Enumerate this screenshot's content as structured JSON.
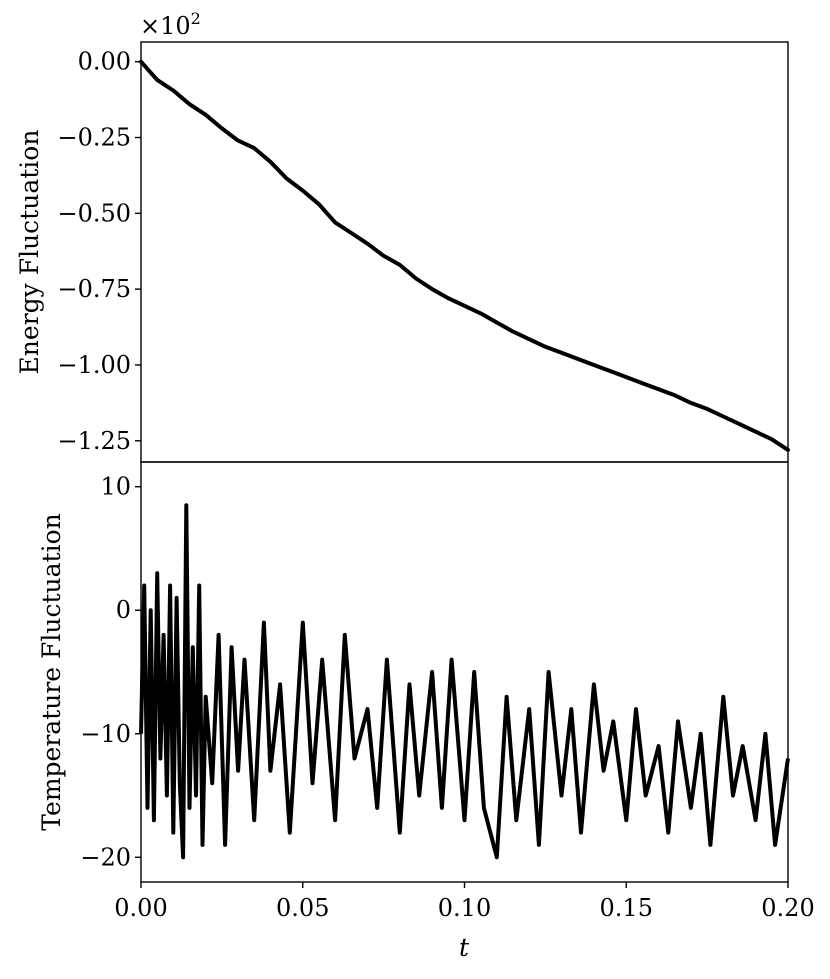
{
  "chart_data": [
    {
      "type": "line",
      "panel": "top",
      "ylabel": "Energy Fluctuation",
      "offset_text": {
        "prefix": "×10",
        "exponent": "2"
      },
      "xlim": [
        0.0,
        0.2
      ],
      "ylim": [
        -1.32,
        0.065
      ],
      "yticks": [
        0.0,
        -0.25,
        -0.5,
        -0.75,
        -1.0,
        -1.25
      ],
      "ytick_labels": [
        "0.00",
        "−0.25",
        "−0.50",
        "−0.75",
        "−1.00",
        "−1.25"
      ],
      "grid": false,
      "color": "#000000",
      "series": [
        {
          "x": [
            0.0,
            0.005,
            0.01,
            0.015,
            0.02,
            0.025,
            0.03,
            0.035,
            0.04,
            0.045,
            0.05,
            0.055,
            0.06,
            0.065,
            0.07,
            0.075,
            0.08,
            0.085,
            0.09,
            0.095,
            0.1,
            0.105,
            0.11,
            0.115,
            0.12,
            0.125,
            0.13,
            0.135,
            0.14,
            0.145,
            0.15,
            0.155,
            0.16,
            0.165,
            0.17,
            0.175,
            0.18,
            0.185,
            0.19,
            0.195,
            0.2
          ],
          "y": [
            0.0,
            -0.06,
            -0.095,
            -0.14,
            -0.175,
            -0.22,
            -0.26,
            -0.285,
            -0.33,
            -0.385,
            -0.425,
            -0.47,
            -0.53,
            -0.565,
            -0.6,
            -0.64,
            -0.67,
            -0.715,
            -0.75,
            -0.78,
            -0.805,
            -0.83,
            -0.86,
            -0.89,
            -0.915,
            -0.94,
            -0.96,
            -0.98,
            -1.0,
            -1.02,
            -1.04,
            -1.06,
            -1.08,
            -1.1,
            -1.125,
            -1.145,
            -1.17,
            -1.195,
            -1.22,
            -1.245,
            -1.28
          ]
        }
      ]
    },
    {
      "type": "line",
      "panel": "bottom",
      "ylabel": "Temperature Fluctuation",
      "xlabel": "t",
      "xlim": [
        0.0,
        0.2
      ],
      "ylim": [
        -22,
        12
      ],
      "yticks": [
        10,
        0,
        -10,
        -20
      ],
      "ytick_labels": [
        "10",
        "0",
        "−10",
        "−20"
      ],
      "xticks": [
        0.0,
        0.05,
        0.1,
        0.15,
        0.2
      ],
      "xtick_labels": [
        "0.00",
        "0.05",
        "0.10",
        "0.15",
        "0.20"
      ],
      "grid": false,
      "color": "#000000",
      "series": [
        {
          "x": [
            0.0,
            0.001,
            0.002,
            0.003,
            0.004,
            0.005,
            0.006,
            0.007,
            0.008,
            0.009,
            0.01,
            0.011,
            0.012,
            0.013,
            0.014,
            0.015,
            0.016,
            0.017,
            0.018,
            0.019,
            0.02,
            0.022,
            0.024,
            0.026,
            0.028,
            0.03,
            0.032,
            0.035,
            0.038,
            0.04,
            0.043,
            0.046,
            0.05,
            0.053,
            0.056,
            0.06,
            0.063,
            0.066,
            0.07,
            0.073,
            0.076,
            0.08,
            0.083,
            0.086,
            0.09,
            0.093,
            0.096,
            0.1,
            0.103,
            0.106,
            0.11,
            0.113,
            0.116,
            0.12,
            0.123,
            0.126,
            0.13,
            0.133,
            0.136,
            0.14,
            0.143,
            0.146,
            0.15,
            0.153,
            0.156,
            0.16,
            0.163,
            0.166,
            0.17,
            0.173,
            0.176,
            0.18,
            0.183,
            0.186,
            0.19,
            0.193,
            0.196,
            0.2
          ],
          "y": [
            -10,
            2,
            -16,
            0,
            -17,
            3,
            -12,
            -2,
            -15,
            2,
            -18,
            1,
            -14,
            -20,
            8.5,
            -16,
            -3,
            -15,
            2,
            -19,
            -7,
            -14,
            -2,
            -19,
            -3,
            -13,
            -4,
            -17,
            -1,
            -13,
            -6,
            -18,
            -1,
            -14,
            -4,
            -17,
            -2,
            -12,
            -8,
            -16,
            -4,
            -18,
            -6,
            -15,
            -5,
            -16,
            -4,
            -17,
            -5,
            -16,
            -20,
            -7,
            -17,
            -8,
            -19,
            -5,
            -15,
            -8,
            -18,
            -6,
            -13,
            -9,
            -17,
            -8,
            -15,
            -11,
            -18,
            -9,
            -16,
            -10,
            -19,
            -7,
            -15,
            -11,
            -17,
            -10,
            -19,
            -12
          ]
        }
      ]
    }
  ]
}
